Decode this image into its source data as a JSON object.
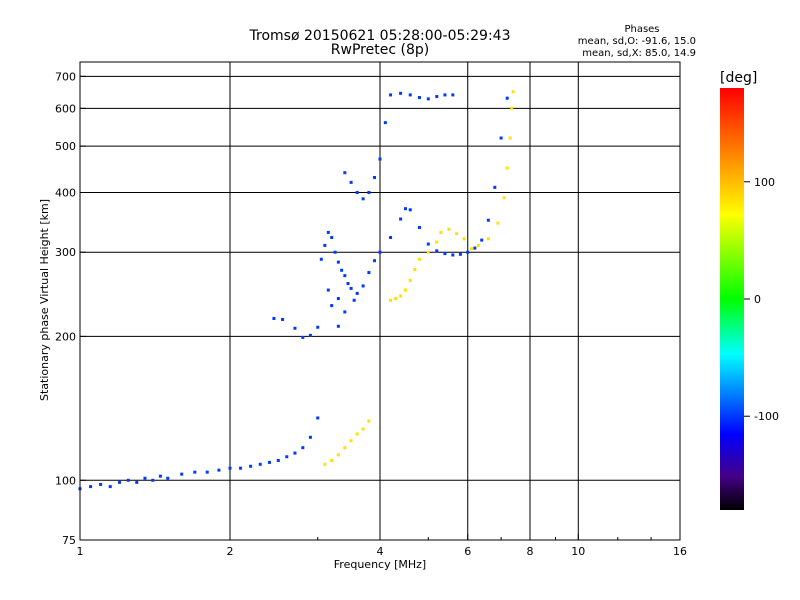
{
  "chart_data": {
    "type": "scatter",
    "title": "Tromsø 20150621 05:28:00-05:29:43",
    "subtitle": "RwPretec (8p)",
    "xlabel": "Frequency [MHz]",
    "ylabel": "Stationary phase Virtual Height [km]",
    "x_scale": "log",
    "y_scale": "log",
    "xlim": [
      1,
      16
    ],
    "ylim": [
      75,
      750
    ],
    "x_ticks": [
      "1",
      "2",
      "4",
      "6",
      "8",
      "10",
      "16"
    ],
    "y_ticks": [
      "75",
      "100",
      "200",
      "300",
      "400",
      "500",
      "600",
      "700"
    ],
    "grid": true,
    "stats": {
      "heading": "Phases",
      "line_o": "mean, sd,O: -91.6, 15.0",
      "line_x": "mean, sd,X: 85.0, 14.9"
    },
    "colorbar": {
      "label": "[deg]",
      "range": [
        -180,
        180
      ],
      "ticks": [
        "100",
        "0",
        "-100"
      ]
    },
    "series": [
      {
        "mode": "O",
        "phase": -100,
        "points": [
          [
            1.0,
            96
          ],
          [
            1.05,
            97
          ],
          [
            1.1,
            98
          ],
          [
            1.15,
            97
          ],
          [
            1.2,
            99
          ],
          [
            1.25,
            100
          ],
          [
            1.3,
            99
          ],
          [
            1.35,
            101
          ],
          [
            1.4,
            100
          ],
          [
            1.45,
            102
          ],
          [
            1.5,
            101
          ],
          [
            1.6,
            103
          ],
          [
            1.7,
            104
          ],
          [
            1.8,
            104
          ],
          [
            1.9,
            105
          ],
          [
            2.0,
            106
          ],
          [
            2.1,
            106
          ],
          [
            2.2,
            107
          ],
          [
            2.3,
            108
          ],
          [
            2.4,
            109
          ],
          [
            2.5,
            110
          ],
          [
            2.6,
            112
          ],
          [
            2.7,
            114
          ],
          [
            2.8,
            117
          ],
          [
            2.9,
            123
          ],
          [
            3.0,
            135
          ],
          [
            2.45,
            218
          ],
          [
            2.55,
            217
          ],
          [
            2.7,
            208
          ],
          [
            2.8,
            199
          ],
          [
            2.9,
            201
          ],
          [
            3.0,
            209
          ],
          [
            3.05,
            290
          ],
          [
            3.1,
            310
          ],
          [
            3.15,
            330
          ],
          [
            3.2,
            322
          ],
          [
            3.25,
            300
          ],
          [
            3.3,
            286
          ],
          [
            3.35,
            275
          ],
          [
            3.4,
            268
          ],
          [
            3.45,
            258
          ],
          [
            3.5,
            252
          ],
          [
            3.6,
            246
          ],
          [
            3.7,
            255
          ],
          [
            3.8,
            272
          ],
          [
            3.9,
            288
          ],
          [
            4.0,
            300
          ],
          [
            4.2,
            322
          ],
          [
            4.4,
            352
          ],
          [
            4.5,
            370
          ],
          [
            4.6,
            368
          ],
          [
            4.8,
            338
          ],
          [
            5.0,
            312
          ],
          [
            5.2,
            302
          ],
          [
            5.4,
            298
          ],
          [
            5.6,
            296
          ],
          [
            5.8,
            297
          ],
          [
            6.0,
            300
          ],
          [
            6.2,
            306
          ],
          [
            6.4,
            318
          ],
          [
            6.6,
            350
          ],
          [
            6.8,
            410
          ],
          [
            7.0,
            520
          ],
          [
            7.2,
            630
          ],
          [
            3.4,
            440
          ],
          [
            3.5,
            420
          ],
          [
            3.6,
            400
          ],
          [
            3.7,
            388
          ],
          [
            3.8,
            400
          ],
          [
            3.9,
            430
          ],
          [
            4.0,
            470
          ],
          [
            4.1,
            560
          ],
          [
            4.2,
            640
          ],
          [
            4.4,
            645
          ],
          [
            4.6,
            640
          ],
          [
            4.8,
            632
          ],
          [
            5.0,
            628
          ],
          [
            5.2,
            635
          ],
          [
            5.4,
            640
          ],
          [
            5.6,
            640
          ],
          [
            3.3,
            210
          ],
          [
            3.4,
            225
          ],
          [
            3.55,
            238
          ],
          [
            3.2,
            232
          ],
          [
            3.3,
            240
          ],
          [
            3.15,
            250
          ]
        ]
      },
      {
        "mode": "X",
        "phase": 85,
        "points": [
          [
            3.1,
            108
          ],
          [
            3.2,
            110
          ],
          [
            3.3,
            113
          ],
          [
            3.4,
            117
          ],
          [
            3.5,
            121
          ],
          [
            3.6,
            125
          ],
          [
            3.7,
            128
          ],
          [
            3.8,
            133
          ],
          [
            4.2,
            238
          ],
          [
            4.3,
            240
          ],
          [
            4.4,
            243
          ],
          [
            4.5,
            250
          ],
          [
            4.6,
            262
          ],
          [
            4.7,
            276
          ],
          [
            4.8,
            290
          ],
          [
            5.0,
            300
          ],
          [
            5.2,
            315
          ],
          [
            5.3,
            330
          ],
          [
            5.5,
            335
          ],
          [
            5.7,
            328
          ],
          [
            5.9,
            320
          ],
          [
            6.1,
            305
          ],
          [
            6.3,
            310
          ],
          [
            6.6,
            320
          ],
          [
            6.9,
            345
          ],
          [
            7.1,
            390
          ],
          [
            7.2,
            450
          ],
          [
            7.3,
            520
          ],
          [
            7.35,
            600
          ],
          [
            7.4,
            650
          ]
        ]
      }
    ]
  }
}
